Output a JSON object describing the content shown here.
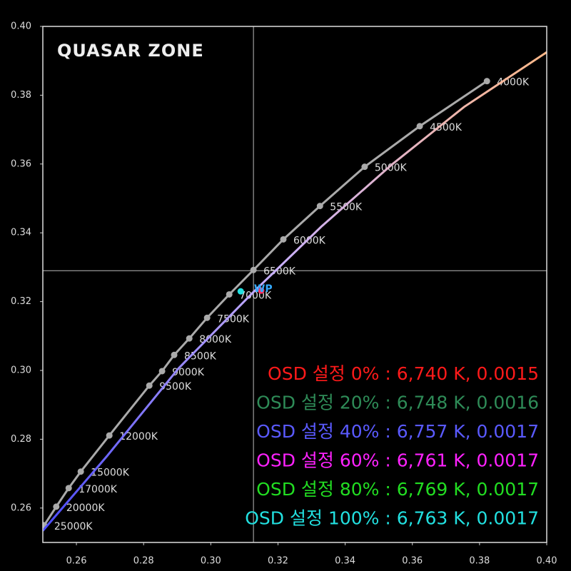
{
  "chart_data": {
    "type": "line",
    "watermark": "QUASAR ZONE",
    "xlim": [
      0.25,
      0.4
    ],
    "ylim": [
      0.25,
      0.4
    ],
    "xticks": [
      0.26,
      0.28,
      {
        "value": 0.3,
        "label": "0.30"
      },
      0.32,
      0.34,
      0.36,
      0.38,
      {
        "value": 0.4,
        "label": "0.40"
      }
    ],
    "yticks": [
      0.26,
      0.28,
      {
        "value": 0.3,
        "label": "0.30"
      },
      0.32,
      0.34,
      0.36,
      0.38,
      {
        "value": 0.4,
        "label": "0.40"
      }
    ],
    "crosshair": {
      "x": 0.3127,
      "y": 0.329,
      "color": "#bbbbbb"
    },
    "series": [
      {
        "color": "#aaaaaa",
        "x": [
          0.2504,
          0.254,
          0.2577,
          0.2613,
          0.2698,
          0.2817,
          0.2855,
          0.2891,
          0.2936,
          0.2989,
          0.3055,
          0.3127,
          0.3216,
          0.3325,
          0.3458,
          0.3622,
          0.3822
        ],
        "values": [
          0.255,
          0.2604,
          0.2658,
          0.2706,
          0.2811,
          0.2956,
          0.2998,
          0.3045,
          0.3093,
          0.3153,
          0.3221,
          0.3292,
          0.3381,
          0.3478,
          0.3592,
          0.371,
          0.3841
        ],
        "point_labels": [
          "25000K",
          "20000K",
          "17000K",
          "15000K",
          "12000K",
          "9500K",
          "9000K",
          "8500K",
          "8000K",
          "7500K",
          "7000K",
          "6500K",
          "6000K",
          "5500K",
          "5000K",
          "4500K",
          "4000K"
        ]
      },
      {
        "colors": [
          "#4a4aff",
          "#c8b0ff",
          "#ffb888"
        ],
        "x": [
          0.25,
          0.2691,
          0.2904,
          0.3127,
          0.3329,
          0.3541,
          0.3754,
          0.4
        ],
        "values": [
          0.2534,
          0.2751,
          0.3006,
          0.3228,
          0.3418,
          0.36,
          0.3766,
          0.3925
        ]
      }
    ],
    "white_point": {
      "label": "WP",
      "label_color": "#33aaff",
      "x": [
        0.315,
        0.3089
      ],
      "y": [
        0.3232,
        0.323
      ],
      "colors": [
        "#ff3060",
        "#22e0e0"
      ]
    },
    "annotations": [
      {
        "text": "OSD 설정 0% : 6,740 K, 0.0015",
        "color": "#ff1a1a"
      },
      {
        "text": "OSD 설정 20% : 6,748 K, 0.0016",
        "color": "#2e8b57"
      },
      {
        "text": "OSD 설정 40% : 6,757 K, 0.0017",
        "color": "#5a5aff"
      },
      {
        "text": "OSD 설정 60% : 6,761 K, 0.0017",
        "color": "#ff22ff"
      },
      {
        "text": "OSD 설정 80% : 6,769 K, 0.0017",
        "color": "#22dd22"
      },
      {
        "text": "OSD 설정 100% : 6,763 K, 0.0017",
        "color": "#22e0e0"
      }
    ]
  }
}
